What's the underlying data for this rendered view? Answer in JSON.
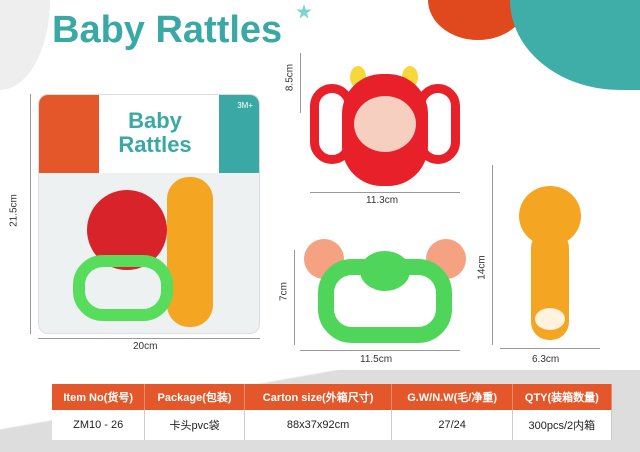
{
  "title": "Baby Rattles",
  "package": {
    "title": "Baby Rattles",
    "age_badge": "3M+"
  },
  "dimensions": {
    "package_height": "21.5cm",
    "package_width": "20cm",
    "monkey_height": "8.5cm",
    "monkey_width": "11.3cm",
    "crab_height": "7cm",
    "crab_width": "11.5cm",
    "deer_height": "14cm",
    "deer_width": "6.3cm"
  },
  "table": {
    "headers": [
      "Item No(货号)",
      "Package(包装)",
      "Carton size(外箱尺寸)",
      "G.W/N.W(毛/净重)",
      "QTY(装箱数量)"
    ],
    "row": [
      "ZM10 - 26",
      "卡头pvc袋",
      "88x37x92cm",
      "27/24",
      "300pcs/2内箱"
    ]
  },
  "colors": {
    "teal": "#3aa9a6",
    "orange": "#e4572a",
    "red": "#e8202a",
    "green": "#4fd65a",
    "yellow": "#f4a623"
  }
}
